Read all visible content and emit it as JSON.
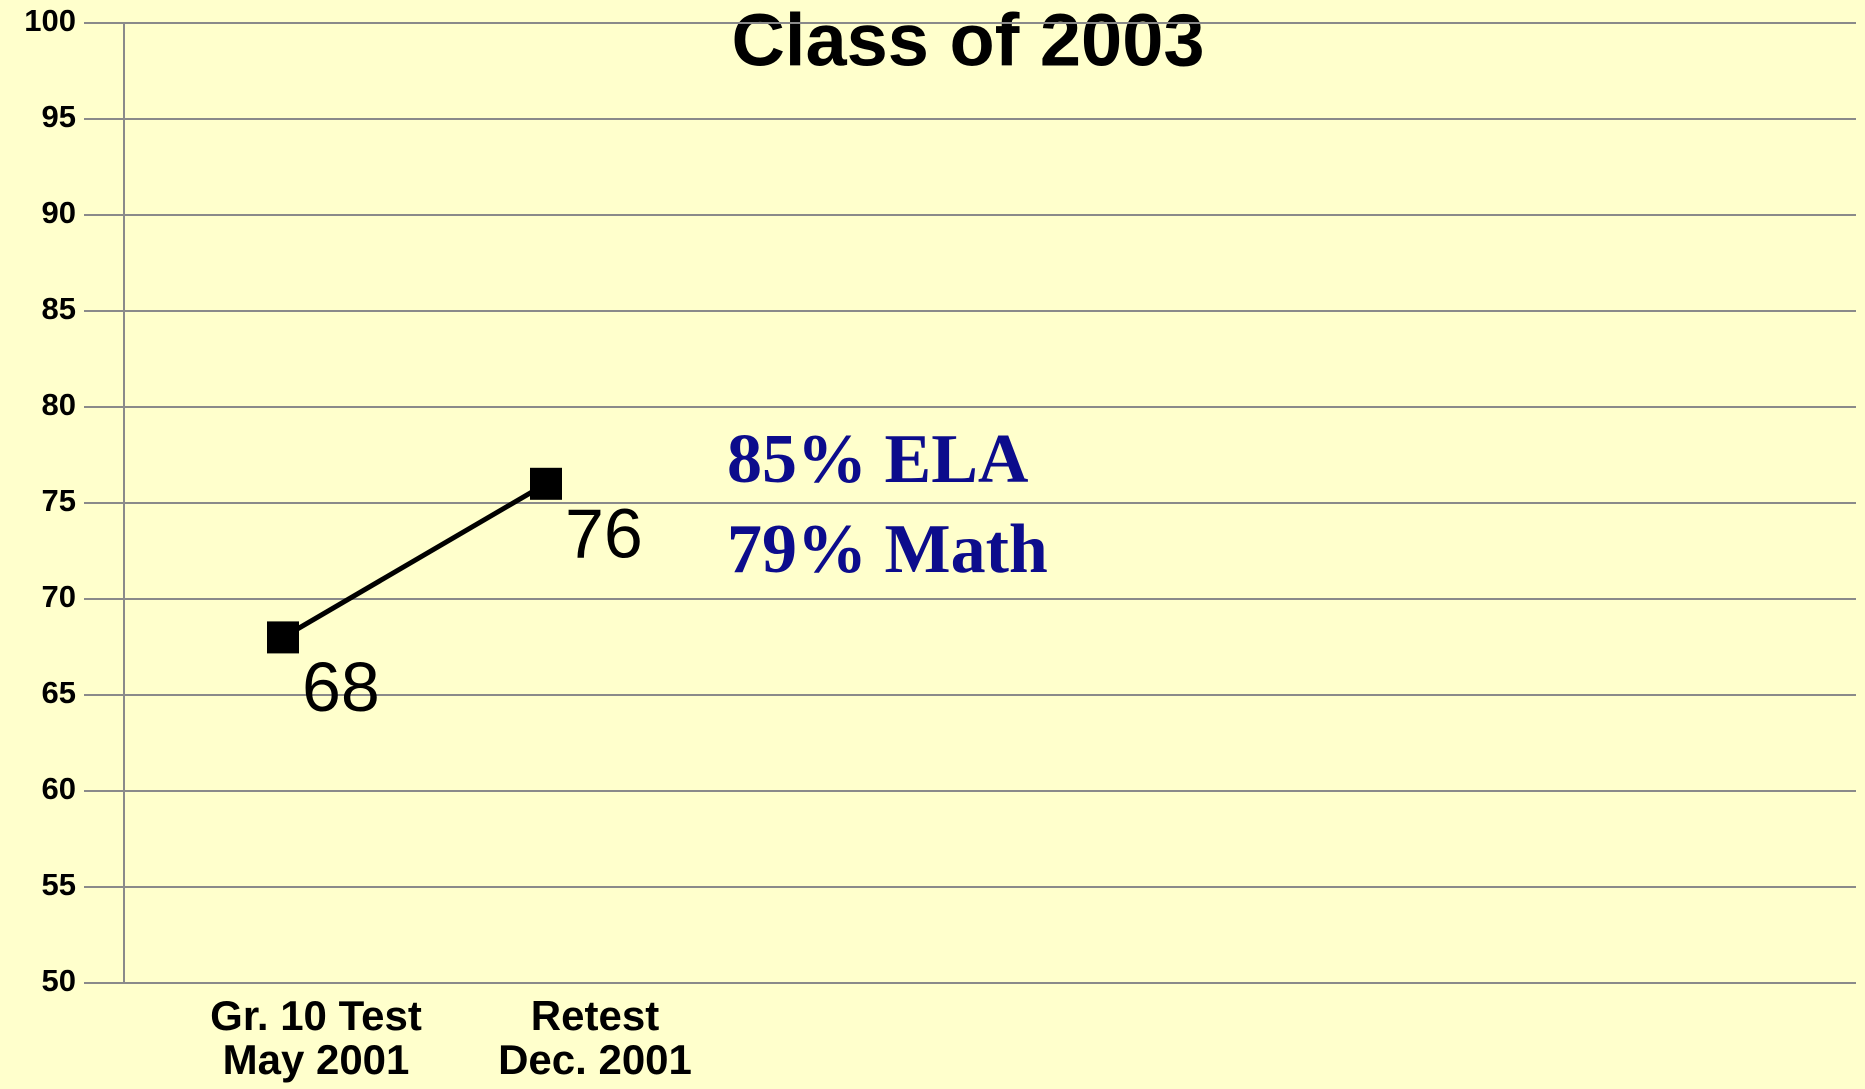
{
  "chart_data": {
    "type": "line",
    "title": "Class of 2003",
    "categories": [
      [
        "Gr. 10 Test",
        "May 2001"
      ],
      [
        "Retest",
        "Dec. 2001"
      ]
    ],
    "series": [
      {
        "color": "#000000",
        "values": [
          68,
          76
        ]
      }
    ],
    "ylim": [
      50,
      100
    ],
    "yticks": [
      50,
      55,
      60,
      65,
      70,
      75,
      80,
      85,
      90,
      95,
      100
    ],
    "grid": true,
    "annotations": [
      "85% ELA",
      "79% Math"
    ]
  }
}
